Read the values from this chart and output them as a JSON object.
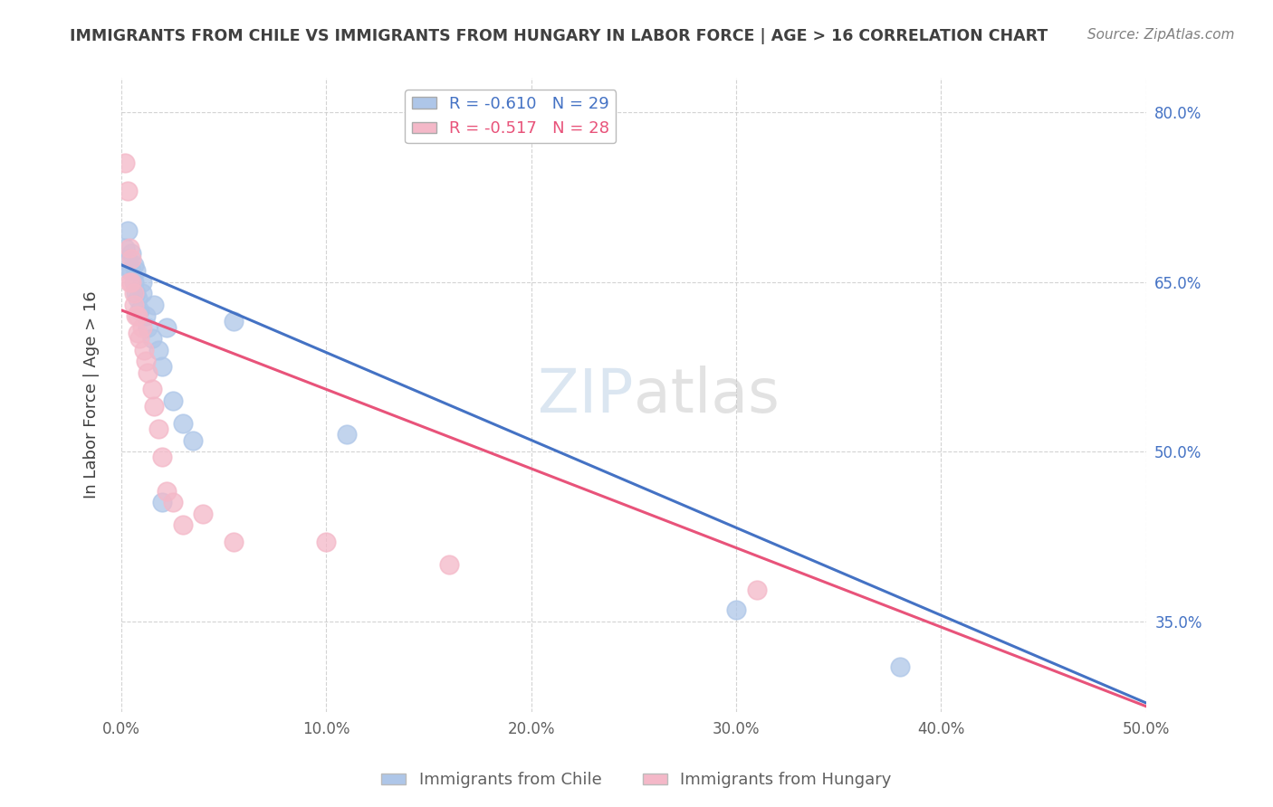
{
  "title": "IMMIGRANTS FROM CHILE VS IMMIGRANTS FROM HUNGARY IN LABOR FORCE | AGE > 16 CORRELATION CHART",
  "source": "Source: ZipAtlas.com",
  "ylabel": "In Labor Force | Age > 16",
  "xlim": [
    0.0,
    0.5
  ],
  "ylim": [
    0.27,
    0.83
  ],
  "yticks": [
    0.35,
    0.5,
    0.65,
    0.8
  ],
  "ytick_labels": [
    "35.0%",
    "50.0%",
    "65.0%",
    "80.0%"
  ],
  "xticks": [
    0.0,
    0.1,
    0.2,
    0.3,
    0.4,
    0.5
  ],
  "xtick_labels": [
    "0.0%",
    "10.0%",
    "20.0%",
    "30.0%",
    "40.0%",
    "50.0%"
  ],
  "watermark": "ZIPatlas",
  "legend_entries": [
    {
      "label": "R = -0.610   N = 29",
      "color": "#aec6e8"
    },
    {
      "label": "R = -0.517   N = 28",
      "color": "#f4b8c8"
    }
  ],
  "bottom_legend": [
    {
      "label": "Immigrants from Chile",
      "color": "#aec6e8"
    },
    {
      "label": "Immigrants from Hungary",
      "color": "#f4b8c8"
    }
  ],
  "chile_scatter_x": [
    0.002,
    0.003,
    0.003,
    0.004,
    0.005,
    0.005,
    0.006,
    0.006,
    0.007,
    0.007,
    0.008,
    0.009,
    0.01,
    0.01,
    0.012,
    0.013,
    0.015,
    0.016,
    0.018,
    0.02,
    0.022,
    0.025,
    0.03,
    0.035,
    0.055,
    0.11,
    0.3,
    0.38,
    0.02
  ],
  "chile_scatter_y": [
    0.68,
    0.67,
    0.695,
    0.66,
    0.675,
    0.66,
    0.665,
    0.65,
    0.66,
    0.64,
    0.635,
    0.625,
    0.65,
    0.64,
    0.62,
    0.61,
    0.6,
    0.63,
    0.59,
    0.575,
    0.61,
    0.545,
    0.525,
    0.51,
    0.615,
    0.515,
    0.36,
    0.31,
    0.455
  ],
  "hungary_scatter_x": [
    0.002,
    0.003,
    0.004,
    0.004,
    0.005,
    0.005,
    0.006,
    0.006,
    0.007,
    0.008,
    0.008,
    0.009,
    0.01,
    0.011,
    0.012,
    0.013,
    0.015,
    0.016,
    0.018,
    0.02,
    0.022,
    0.025,
    0.03,
    0.04,
    0.055,
    0.1,
    0.16,
    0.31
  ],
  "hungary_scatter_y": [
    0.755,
    0.73,
    0.68,
    0.65,
    0.67,
    0.65,
    0.64,
    0.63,
    0.62,
    0.62,
    0.605,
    0.6,
    0.61,
    0.59,
    0.58,
    0.57,
    0.555,
    0.54,
    0.52,
    0.495,
    0.465,
    0.455,
    0.435,
    0.445,
    0.42,
    0.42,
    0.4,
    0.378
  ],
  "chile_line_x0": 0.0,
  "chile_line_x1": 0.5,
  "chile_line_y0": 0.665,
  "chile_line_y1": 0.278,
  "hungary_line_x0": 0.0,
  "hungary_line_x1": 0.5,
  "hungary_line_y0": 0.625,
  "hungary_line_y1": 0.275,
  "chile_line_color": "#4472c4",
  "hungary_line_color": "#e8537a",
  "chile_dot_color": "#aec6e8",
  "hungary_dot_color": "#f4b8c8",
  "background_color": "#ffffff",
  "grid_color": "#c8c8c8",
  "title_color": "#404040",
  "source_color": "#808080",
  "right_ytick_color": "#4472c4",
  "axis_tick_color": "#606060"
}
